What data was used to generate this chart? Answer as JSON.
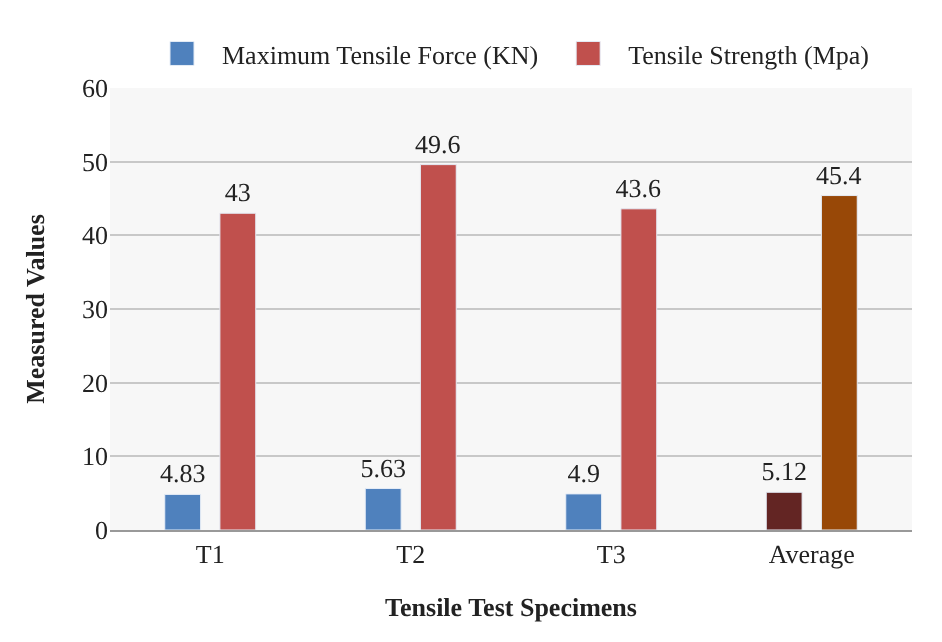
{
  "chart_data": {
    "type": "bar",
    "xlabel": "Tensile Test Specimens",
    "ylabel": "Measured Values",
    "categories": [
      "T1",
      "T2",
      "T3",
      "Average"
    ],
    "series": [
      {
        "name": "Maximum Tensile Force (KN)",
        "colors": [
          "#4f81bd",
          "#4f81bd",
          "#4f81bd",
          "#632523"
        ],
        "values": [
          4.83,
          5.63,
          4.9,
          5.12
        ]
      },
      {
        "name": "Tensile Strength (Mpa)",
        "colors": [
          "#c0504d",
          "#c0504d",
          "#c0504d",
          "#984807"
        ],
        "values": [
          43,
          49.6,
          43.6,
          45.4
        ]
      }
    ],
    "ylim": [
      0,
      60
    ],
    "yticks": [
      0,
      10,
      20,
      30,
      40,
      50,
      60
    ],
    "grid": "y",
    "legend": "top",
    "data_labels": true
  }
}
